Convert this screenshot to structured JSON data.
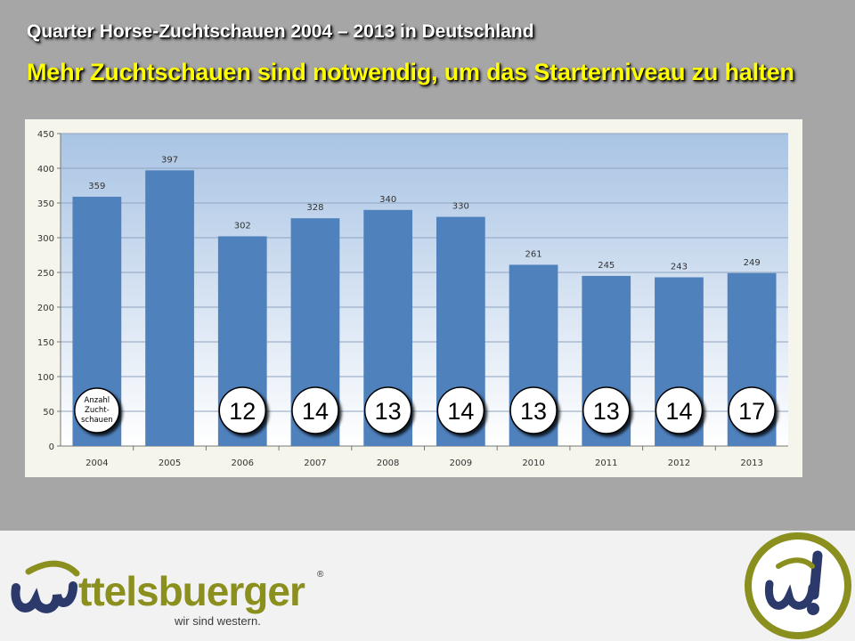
{
  "slide": {
    "title": "Quarter Horse-Zuchtschauen 2004 – 2013 in Deutschland",
    "subtitle": "Mehr Zuchtschauen sind notwendig, um das Starterniveau zu halten"
  },
  "colors": {
    "bar": "#4f81bd",
    "subtitle": "#ffff00",
    "logo_green": "#8a8f1e",
    "logo_navy": "#2b3a6b"
  },
  "chart_data": {
    "type": "bar",
    "title": "",
    "xlabel": "",
    "ylabel": "",
    "ylim": [
      0,
      450
    ],
    "yticks": [
      "0",
      "50",
      "100",
      "150",
      "200",
      "250",
      "300",
      "350",
      "400",
      "450"
    ],
    "grid": true,
    "categories": [
      "2004",
      "2005",
      "2006",
      "2007",
      "2008",
      "2009",
      "2010",
      "2011",
      "2012",
      "2013"
    ],
    "values": [
      359,
      397,
      302,
      328,
      340,
      330,
      261,
      245,
      243,
      249
    ],
    "value_labels": [
      "359",
      "397",
      "302",
      "328",
      "340",
      "330",
      "261",
      "245",
      "243",
      "249"
    ],
    "badge_legend": {
      "category": "2004",
      "text": [
        "Anzahl",
        "Zucht-",
        "schauen"
      ]
    },
    "badges": [
      {
        "category": "2006",
        "value": "12"
      },
      {
        "category": "2007",
        "value": "14"
      },
      {
        "category": "2008",
        "value": "13"
      },
      {
        "category": "2009",
        "value": "14"
      },
      {
        "category": "2010",
        "value": "13"
      },
      {
        "category": "2011",
        "value": "13"
      },
      {
        "category": "2012",
        "value": "14"
      },
      {
        "category": "2013",
        "value": "17"
      }
    ]
  },
  "footer": {
    "brand": "ttelsbuerger",
    "slogan": "wir sind western.",
    "registered": "®",
    "logo_mark": "wittelsbuerger-circle-logo"
  }
}
